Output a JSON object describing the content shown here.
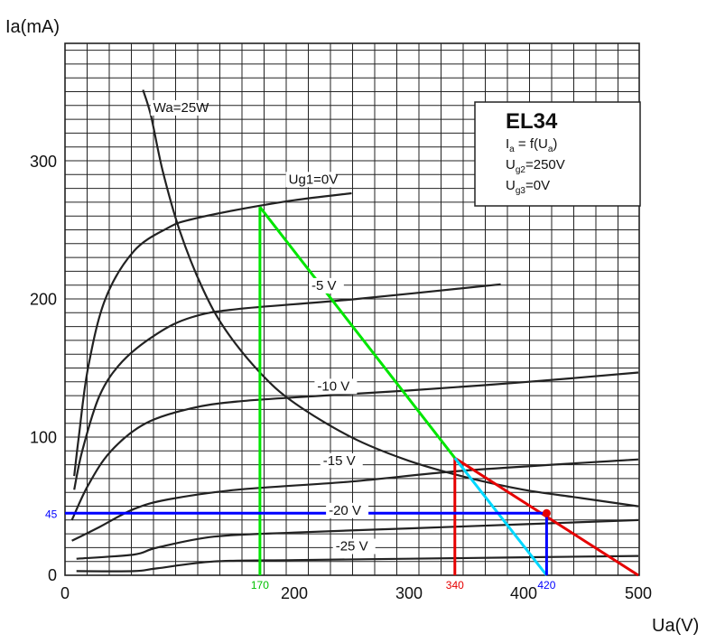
{
  "chart_data": {
    "type": "line",
    "title": "",
    "xlabel": "Ua(V)",
    "ylabel": "Ia(mA)",
    "xlim": [
      0,
      500
    ],
    "ylim": [
      0,
      350
    ],
    "grid": true,
    "x_ticks": [
      0,
      100,
      200,
      300,
      400,
      500
    ],
    "x_tick_labels": [
      "0",
      "",
      "200",
      "300",
      "400",
      "500"
    ],
    "y_ticks": [
      0,
      100,
      200,
      300
    ],
    "y_tick_labels": [
      "0",
      "100",
      "200",
      "300"
    ],
    "info_box": {
      "title": "EL34",
      "line1": {
        "main": "I",
        "sub": "a",
        "rest": " = f(U",
        "sub2": "a",
        "end": ")"
      },
      "line2": {
        "main": "U",
        "sub": "g2",
        "rest": "=250V"
      },
      "line3": {
        "main": "U",
        "sub": "g3",
        "rest": "=0V"
      }
    },
    "series": [
      {
        "name": "Ug1=0V",
        "label_at": [
          195,
          284
        ],
        "color": "#222222",
        "points": [
          [
            8,
            72
          ],
          [
            12,
            100
          ],
          [
            20,
            150
          ],
          [
            35,
            200
          ],
          [
            60,
            235
          ],
          [
            90,
            252
          ],
          [
            110,
            258
          ],
          [
            150,
            265
          ],
          [
            200,
            272
          ],
          [
            250,
            277
          ]
        ]
      },
      {
        "name": "-5 V",
        "label_at": [
          215,
          207
        ],
        "color": "#222222",
        "points": [
          [
            8,
            62
          ],
          [
            15,
            90
          ],
          [
            30,
            130
          ],
          [
            50,
            155
          ],
          [
            80,
            175
          ],
          [
            110,
            187
          ],
          [
            150,
            193
          ],
          [
            250,
            200
          ],
          [
            380,
            211
          ]
        ]
      },
      {
        "name": "-10 V",
        "label_at": [
          220,
          134
        ],
        "color": "#222222",
        "points": [
          [
            6,
            40
          ],
          [
            20,
            65
          ],
          [
            40,
            90
          ],
          [
            70,
            110
          ],
          [
            110,
            121
          ],
          [
            150,
            126
          ],
          [
            220,
            130
          ],
          [
            300,
            134
          ],
          [
            400,
            140
          ],
          [
            500,
            147
          ]
        ]
      },
      {
        "name": "-15 V",
        "label_at": [
          225,
          80
        ],
        "color": "#222222",
        "points": [
          [
            6,
            25
          ],
          [
            30,
            35
          ],
          [
            60,
            48
          ],
          [
            90,
            55
          ],
          [
            150,
            62
          ],
          [
            250,
            68
          ],
          [
            350,
            76
          ],
          [
            500,
            84
          ]
        ]
      },
      {
        "name": "-20 V",
        "label_at": [
          230,
          44
        ],
        "color": "#222222",
        "points": [
          [
            10,
            12
          ],
          [
            60,
            15
          ],
          [
            80,
            20
          ],
          [
            130,
            28
          ],
          [
            200,
            31
          ],
          [
            300,
            34
          ],
          [
            400,
            37
          ],
          [
            500,
            40
          ]
        ]
      },
      {
        "name": "-25 V",
        "label_at": [
          236,
          18
        ],
        "color": "#222222",
        "points": [
          [
            10,
            3
          ],
          [
            60,
            3
          ],
          [
            80,
            5
          ],
          [
            130,
            10
          ],
          [
            200,
            11
          ],
          [
            300,
            12
          ],
          [
            400,
            13
          ],
          [
            500,
            14
          ]
        ]
      },
      {
        "name": "Wa=25W",
        "label_at": [
          77,
          336
        ],
        "color": "#222222",
        "points": [
          [
            68,
            352
          ],
          [
            75,
            333
          ],
          [
            85,
            294
          ],
          [
            100,
            250
          ],
          [
            120,
            208
          ],
          [
            140,
            178
          ],
          [
            170,
            147
          ],
          [
            200,
            125
          ],
          [
            250,
            100
          ],
          [
            300,
            83
          ],
          [
            350,
            71
          ],
          [
            400,
            62
          ],
          [
            450,
            56
          ],
          [
            500,
            50
          ]
        ]
      }
    ],
    "markers": [
      {
        "color": "#00e600",
        "segments": [
          [
            [
              170,
              0
            ],
            [
              170,
              267
            ]
          ],
          [
            [
              170,
              267
            ],
            [
              340,
              85
            ]
          ]
        ]
      },
      {
        "color": "#e60000",
        "segments": [
          [
            [
              340,
              0
            ],
            [
              340,
              85
            ]
          ],
          [
            [
              340,
              85
            ],
            [
              500,
              0
            ]
          ]
        ]
      },
      {
        "color": "#00d8ff",
        "segments": [
          [
            [
              340,
              85
            ],
            [
              420,
              0
            ]
          ]
        ]
      },
      {
        "color": "#0000ff",
        "segments": [
          [
            [
              0,
              45
            ],
            [
              420,
              45
            ]
          ],
          [
            [
              420,
              45
            ],
            [
              420,
              0
            ]
          ]
        ]
      }
    ],
    "point": {
      "x": 420,
      "y": 45,
      "color": "#e60000"
    },
    "marker_labels": [
      {
        "text": "45",
        "color": "#0000ff",
        "at": "y"
      },
      {
        "text": "170",
        "color": "#00c000",
        "at": "x",
        "value": 170
      },
      {
        "text": "340",
        "color": "#e60000",
        "at": "x",
        "value": 340
      },
      {
        "text": "420",
        "color": "#0000ff",
        "at": "x",
        "value": 420
      }
    ]
  }
}
